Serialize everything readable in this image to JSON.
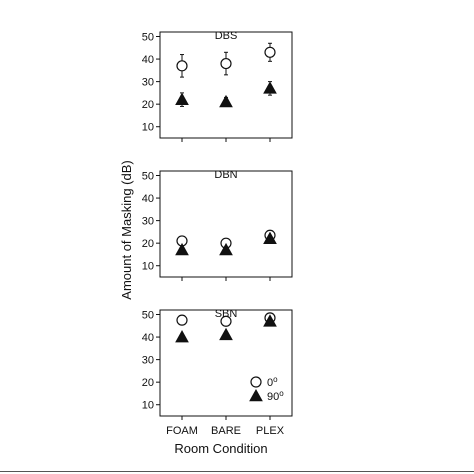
{
  "chart_data": [
    {
      "type": "scatter",
      "title": "DBS",
      "categories": [
        "FOAM",
        "BARE",
        "PLEX"
      ],
      "ylim": [
        5,
        52
      ],
      "yticks": [
        10,
        20,
        30,
        40,
        50
      ],
      "series": [
        {
          "name": "0°",
          "marker": "open-circle",
          "values": [
            37,
            38,
            43
          ],
          "err": [
            5,
            5,
            4
          ]
        },
        {
          "name": "90°",
          "marker": "filled-triangle",
          "values": [
            22,
            21,
            27
          ],
          "err": [
            3,
            2,
            3
          ]
        }
      ]
    },
    {
      "type": "scatter",
      "title": "DBN",
      "categories": [
        "FOAM",
        "BARE",
        "PLEX"
      ],
      "ylim": [
        5,
        52
      ],
      "yticks": [
        10,
        20,
        30,
        40,
        50
      ],
      "series": [
        {
          "name": "0°",
          "marker": "open-circle",
          "values": [
            21,
            20,
            23.5
          ],
          "err": [
            0,
            0,
            0
          ]
        },
        {
          "name": "90°",
          "marker": "filled-triangle",
          "values": [
            17,
            17,
            22
          ],
          "err": [
            0,
            0,
            0
          ]
        }
      ]
    },
    {
      "type": "scatter",
      "title": "SBN",
      "categories": [
        "FOAM",
        "BARE",
        "PLEX"
      ],
      "ylim": [
        5,
        52
      ],
      "yticks": [
        10,
        20,
        30,
        40,
        50
      ],
      "series": [
        {
          "name": "0°",
          "marker": "open-circle",
          "values": [
            47.5,
            47,
            48.5
          ],
          "err": [
            0,
            0,
            0
          ]
        },
        {
          "name": "90°",
          "marker": "filled-triangle",
          "values": [
            40,
            41,
            47
          ],
          "err": [
            0,
            0,
            0
          ]
        }
      ]
    }
  ],
  "axes": {
    "ylabel": "Amount of Masking (dB)",
    "xlabel": "Room Condition"
  },
  "legend": {
    "placement": "bottom-right of last panel",
    "items": [
      {
        "marker": "open-circle",
        "label_main": "0",
        "label_sup": "o"
      },
      {
        "marker": "filled-triangle",
        "label_main": "90",
        "label_sup": "o"
      }
    ]
  }
}
